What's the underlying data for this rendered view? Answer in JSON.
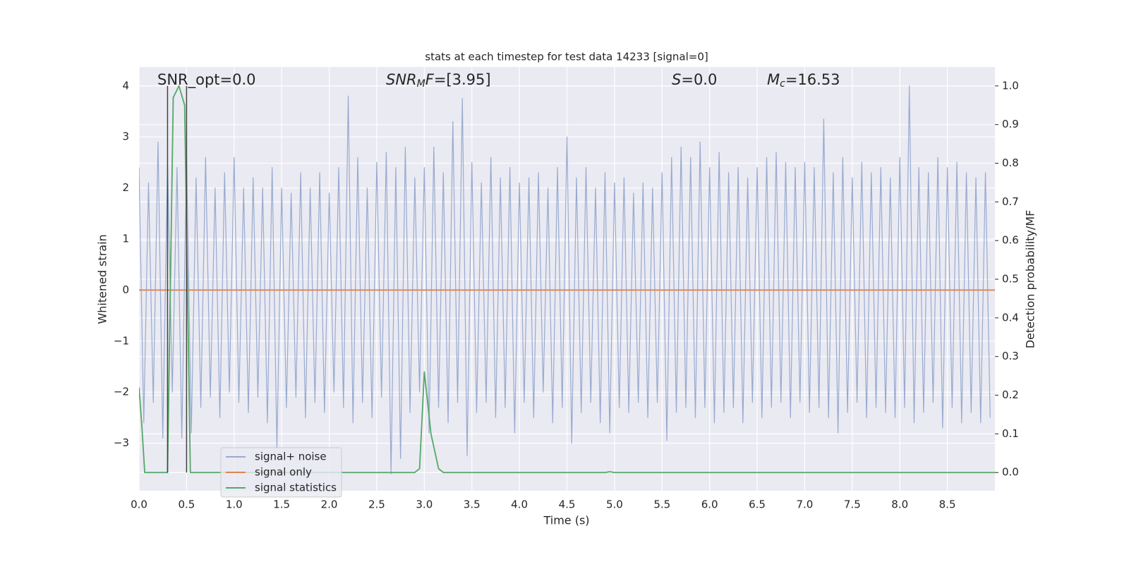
{
  "chart_data": {
    "type": "line",
    "title": "stats at each timestep for test data 14233 [signal=0]",
    "x_label": "Time (s)",
    "y_label": "Whitened strain",
    "y2_label": "Detection probability/MF",
    "xlim": [
      0,
      9
    ],
    "ylim": [
      -3.93,
      4.37
    ],
    "y2lim": [
      -0.047,
      1.049
    ],
    "xticks": [
      {
        "value": 0,
        "label": "0.0"
      },
      0.5,
      {
        "value": 1,
        "label": "1.0"
      },
      1.5,
      {
        "value": 2,
        "label": "2.0"
      },
      2.5,
      {
        "value": 3,
        "label": "3.0"
      },
      3.5,
      {
        "value": 4,
        "label": "4.0"
      },
      4.5,
      {
        "value": 5,
        "label": "5.0"
      },
      5.5,
      {
        "value": 6,
        "label": "6.0"
      },
      6.5,
      {
        "value": 7,
        "label": "7.0"
      },
      7.5,
      {
        "value": 8,
        "label": "8.0"
      },
      8.5
    ],
    "yticks": [
      {
        "value": -3,
        "label": "−3"
      },
      {
        "value": -2,
        "label": "−2"
      },
      {
        "value": -1,
        "label": "−1"
      },
      0,
      1,
      2,
      3,
      4
    ],
    "y2ticks": [
      {
        "value": 0,
        "label": "0.0"
      },
      0.1,
      0.2,
      0.3,
      0.4,
      0.5,
      0.6,
      0.7,
      0.8,
      0.9,
      {
        "value": 1,
        "label": "1.0"
      }
    ],
    "grid": true,
    "legend": "lower left",
    "background": "#eaeaf2",
    "vlines": [
      0.3,
      0.5
    ],
    "vline_color": "#444444",
    "annotations": [
      {
        "parts": [
          {
            "text": "SNR_opt=0.0"
          }
        ]
      },
      {
        "parts": [
          {
            "text": "SNR",
            "italic": true
          },
          {
            "text": "M",
            "italic": true,
            "sub": true
          },
          {
            "text": "F",
            "italic": true
          },
          {
            "text": "=[3.95]"
          }
        ]
      },
      {
        "parts": [
          {
            "text": "S",
            "italic": true
          },
          {
            "text": "=0.0"
          }
        ]
      },
      {
        "parts": [
          {
            "text": "M",
            "italic": true
          },
          {
            "text": "c",
            "italic": true,
            "sub": true
          },
          {
            "text": "=16.53"
          }
        ]
      }
    ],
    "series": [
      {
        "name": "signal+ noise",
        "color": "#98aad0",
        "x": [
          0,
          0.05,
          0.1,
          0.15,
          0.2,
          0.25,
          0.3,
          0.35,
          0.4,
          0.45,
          0.5,
          0.55,
          0.6,
          0.65,
          0.7,
          0.75,
          0.8,
          0.85,
          0.9,
          0.95,
          1,
          1.05,
          1.1,
          1.15,
          1.2,
          1.25,
          1.3,
          1.35,
          1.4,
          1.45,
          1.5,
          1.55,
          1.6,
          1.65,
          1.7,
          1.75,
          1.8,
          1.85,
          1.9,
          1.95,
          2,
          2.05,
          2.1,
          2.15,
          2.2,
          2.25,
          2.3,
          2.35,
          2.4,
          2.45,
          2.5,
          2.55,
          2.6,
          2.65,
          2.7,
          2.75,
          2.8,
          2.85,
          2.9,
          2.95,
          3,
          3.05,
          3.1,
          3.15,
          3.2,
          3.25,
          3.3,
          3.35,
          3.4,
          3.45,
          3.5,
          3.55,
          3.6,
          3.65,
          3.7,
          3.75,
          3.8,
          3.85,
          3.9,
          3.95,
          4,
          4.05,
          4.1,
          4.15,
          4.2,
          4.25,
          4.3,
          4.35,
          4.4,
          4.45,
          4.5,
          4.55,
          4.6,
          4.65,
          4.7,
          4.75,
          4.8,
          4.85,
          4.9,
          4.95,
          5,
          5.05,
          5.1,
          5.15,
          5.2,
          5.25,
          5.3,
          5.35,
          5.4,
          5.45,
          5.5,
          5.55,
          5.6,
          5.65,
          5.7,
          5.75,
          5.8,
          5.85,
          5.9,
          5.95,
          6,
          6.05,
          6.1,
          6.15,
          6.2,
          6.25,
          6.3,
          6.35,
          6.4,
          6.45,
          6.5,
          6.55,
          6.6,
          6.65,
          6.7,
          6.75,
          6.8,
          6.85,
          6.9,
          6.95,
          7,
          7.05,
          7.1,
          7.15,
          7.2,
          7.25,
          7.3,
          7.35,
          7.4,
          7.45,
          7.5,
          7.55,
          7.6,
          7.65,
          7.7,
          7.75,
          7.8,
          7.85,
          7.9,
          7.95,
          8,
          8.05,
          8.1,
          8.15,
          8.2,
          8.25,
          8.3,
          8.35,
          8.4,
          8.45,
          8.5,
          8.55,
          8.6,
          8.65,
          8.7,
          8.75,
          8.8,
          8.85,
          8.9,
          8.95
        ],
        "values": [
          2.4,
          -2.6,
          2.1,
          -2.2,
          2.9,
          -2.9,
          2.5,
          -2.0,
          2.4,
          -2.9,
          2.6,
          -2.8,
          2.2,
          -2.3,
          2.6,
          -2.1,
          2.0,
          -2.5,
          2.3,
          -2.0,
          2.6,
          -2.2,
          2.0,
          -2.4,
          2.2,
          -2.1,
          2.0,
          -2.6,
          2.4,
          -3.1,
          2.0,
          -2.3,
          1.9,
          -2.1,
          2.3,
          -2.5,
          2.0,
          -2.2,
          2.3,
          -2.4,
          1.9,
          -2.0,
          2.4,
          -2.3,
          3.8,
          -2.6,
          2.6,
          -2.2,
          2.0,
          -2.5,
          2.5,
          -2.1,
          2.7,
          -3.6,
          2.4,
          -3.3,
          2.8,
          -2.4,
          2.2,
          -2.0,
          2.4,
          -2.8,
          2.8,
          -2.3,
          2.3,
          -2.6,
          3.3,
          -2.2,
          3.75,
          -3.25,
          2.5,
          -2.4,
          2.1,
          -2.2,
          2.6,
          -2.5,
          2.2,
          -2.3,
          2.4,
          -2.8,
          2.1,
          -2.2,
          2.2,
          -2.5,
          2.3,
          -2.0,
          2.0,
          -2.6,
          2.4,
          -2.3,
          3.0,
          -3.0,
          2.2,
          -2.4,
          2.4,
          -2.2,
          2.0,
          -2.6,
          2.3,
          -2.8,
          2.1,
          -2.3,
          2.2,
          -2.4,
          1.9,
          -2.2,
          2.1,
          -2.5,
          2.0,
          -2.2,
          2.3,
          -2.95,
          2.6,
          -2.4,
          2.8,
          -2.3,
          2.6,
          -2.5,
          2.9,
          -2.3,
          2.4,
          -2.6,
          2.7,
          -2.4,
          2.3,
          -2.3,
          2.4,
          -2.6,
          2.2,
          -2.2,
          2.4,
          -2.5,
          2.6,
          -2.3,
          2.7,
          -2.2,
          2.5,
          -2.5,
          2.4,
          -2.2,
          2.5,
          -2.4,
          2.4,
          -2.3,
          3.35,
          -2.5,
          2.3,
          -2.8,
          2.6,
          -2.4,
          2.2,
          -2.2,
          2.5,
          -2.5,
          2.3,
          -2.3,
          2.4,
          -2.4,
          2.2,
          -2.5,
          2.6,
          -2.3,
          4.0,
          -2.6,
          2.4,
          -2.4,
          2.3,
          -2.2,
          2.6,
          -2.7,
          2.4,
          -2.3,
          2.5,
          -2.6,
          2.3,
          -2.4,
          2.2,
          -2.6,
          2.3,
          -2.5
        ]
      },
      {
        "name": "signal only",
        "color": "#dd8452",
        "x": [
          0,
          9
        ],
        "values": [
          0,
          0
        ]
      },
      {
        "name": "signal statistics",
        "color": "#55a868",
        "axis": "y2",
        "x": [
          0,
          0.03,
          0.06,
          0.3,
          0.36,
          0.42,
          0.48,
          0.54,
          2.9,
          2.95,
          3.0,
          3.07,
          3.15,
          3.2,
          4.9,
          4.95,
          5.0,
          9.0
        ],
        "values": [
          0.22,
          0.12,
          0.0,
          0.0,
          0.97,
          1.0,
          0.95,
          0.0,
          0.0,
          0.01,
          0.26,
          0.1,
          0.01,
          0.0,
          0.0,
          0.002,
          0.0,
          0.0
        ]
      }
    ]
  }
}
